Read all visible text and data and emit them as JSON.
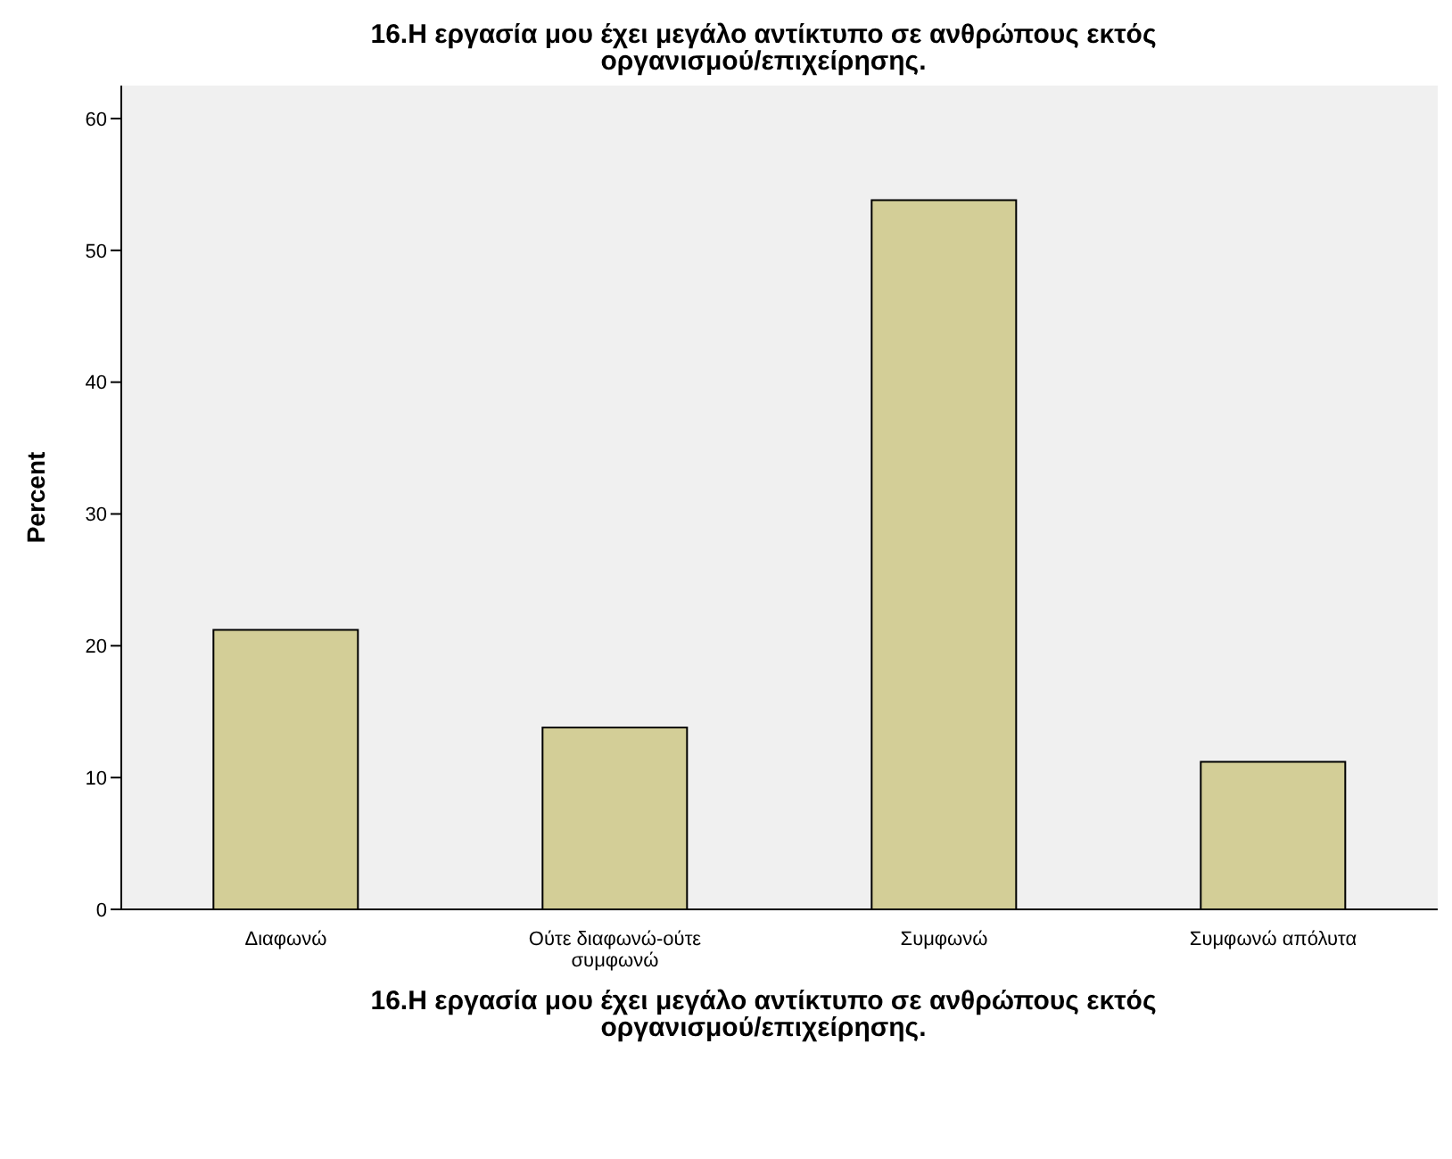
{
  "chart_data": {
    "type": "bar",
    "title": "16.Η εργασία μου έχει μεγάλο αντίκτυπο σε ανθρώπους εκτός οργανισμού/επιχείρησης.",
    "xlabel": "16.Η εργασία μου έχει μεγάλο αντίκτυπο σε ανθρώπους εκτός οργανισμού/επιχείρησης.",
    "ylabel": "Percent",
    "categories": [
      "Διαφωνώ",
      "Ούτε διαφωνώ-ούτε συμφωνώ",
      "Συμφωνώ",
      "Συμφωνώ απόλυτα"
    ],
    "values": [
      21.2,
      13.8,
      53.8,
      11.2
    ],
    "color": "#d3ce97",
    "ylim": [
      0,
      62.5
    ],
    "yticks": [
      0,
      10,
      20,
      30,
      40,
      50,
      60
    ]
  }
}
